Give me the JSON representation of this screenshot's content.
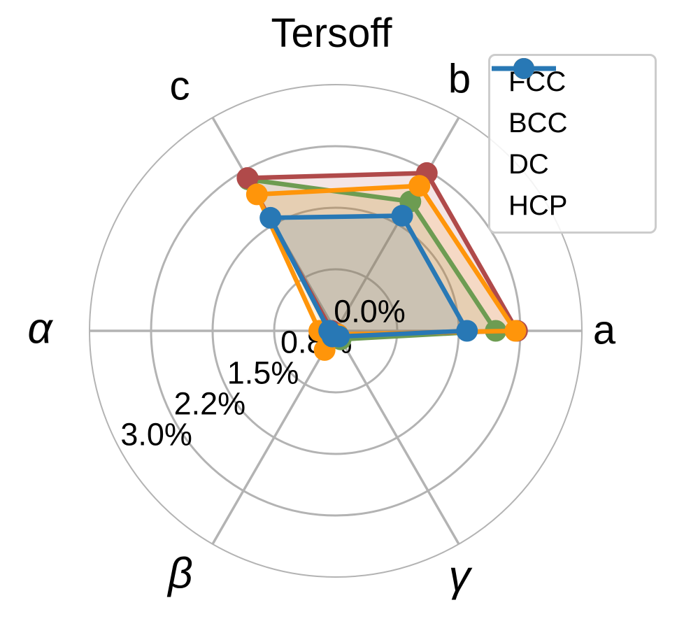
{
  "title": "Tersoff",
  "chart_data": {
    "type": "radar",
    "title": "Tersoff",
    "axes": [
      "a",
      "b",
      "c",
      "α",
      "β",
      "γ"
    ],
    "axis_angles_deg": [
      0,
      60,
      120,
      180,
      240,
      300
    ],
    "r_unit": "%",
    "r_max": 3.0,
    "r_ticks": [
      {
        "value": 0.0,
        "label": "0.0%"
      },
      {
        "value": 0.75,
        "label": "0.8%"
      },
      {
        "value": 1.5,
        "label": "1.5%"
      },
      {
        "value": 2.25,
        "label": "2.2%"
      },
      {
        "value": 3.0,
        "label": "3.0%"
      }
    ],
    "grid": true,
    "fill_opacity": 0.14,
    "series": [
      {
        "name": "FCC",
        "color": "#6d9c52",
        "values": [
          1.95,
          1.82,
          2.13,
          0.05,
          0.05,
          0.12
        ]
      },
      {
        "name": "BCC",
        "color": "#b04a4a",
        "values": [
          2.21,
          2.22,
          2.15,
          0.05,
          0.05,
          0.05
        ]
      },
      {
        "name": "DC",
        "color": "#ff950a",
        "values": [
          2.19,
          2.04,
          1.92,
          0.2,
          0.27,
          0.05
        ]
      },
      {
        "name": "HCP",
        "color": "#2878b5",
        "values": [
          1.6,
          1.62,
          1.59,
          0.08,
          0.08,
          0.08
        ]
      }
    ],
    "legend": {
      "position": "upper right",
      "entries": [
        "FCC",
        "BCC",
        "DC",
        "HCP"
      ]
    }
  },
  "colors": {
    "background": "#ffffff",
    "grid": "#b3b3b3",
    "text": "#000000",
    "legend_border": "#cccccc"
  }
}
